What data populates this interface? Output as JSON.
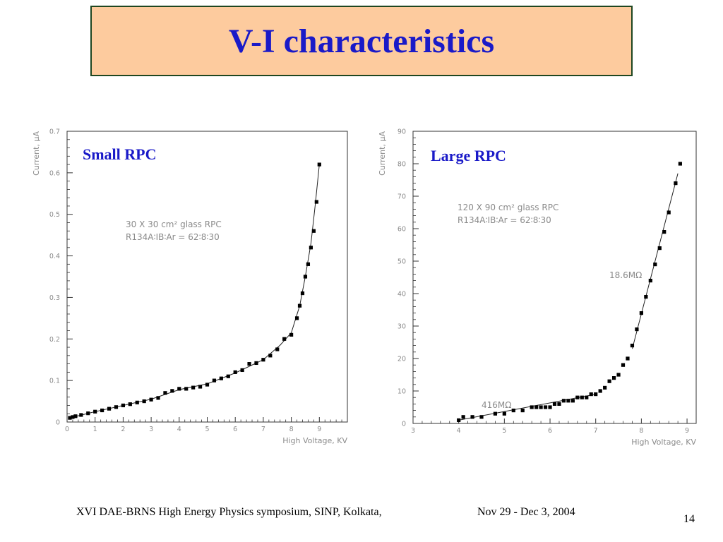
{
  "slide": {
    "title": "V-I characteristics",
    "footer": "XVI DAE-BRNS High Energy Physics symposium, SINP, Kolkata,",
    "footer_date": "Nov 29 - Dec 3, 2004",
    "slide_number": "14"
  },
  "colors": {
    "title_bg": "#fdcb9e",
    "title_border": "#1e4620",
    "title_text": "#1a1ac8",
    "marker": "#000000",
    "annotation": "#8a8a8a"
  },
  "chart_data": [
    {
      "id": "small",
      "type": "scatter",
      "label": "Small RPC",
      "xlabel": "High Voltage, KV",
      "ylabel": "Current, μA",
      "xlim": [
        0,
        10
      ],
      "ylim": [
        0,
        0.7
      ],
      "xticks": [
        0,
        1,
        2,
        3,
        4,
        5,
        6,
        7,
        8,
        9
      ],
      "yticks": [
        0,
        0.1,
        0.2,
        0.3,
        0.4,
        0.5,
        0.6,
        0.7
      ],
      "annotations": [
        "30 X 30 cm² glass RPC",
        "R134A∶IB∶Ar = 62∶8∶30"
      ],
      "grid": false,
      "x": [
        0.1,
        0.2,
        0.3,
        0.5,
        0.75,
        1.0,
        1.25,
        1.5,
        1.75,
        2.0,
        2.25,
        2.5,
        2.75,
        3.0,
        3.25,
        3.5,
        3.75,
        4.0,
        4.25,
        4.5,
        4.75,
        5.0,
        5.25,
        5.5,
        5.75,
        6.0,
        6.25,
        6.5,
        6.75,
        7.0,
        7.25,
        7.5,
        7.75,
        8.0,
        8.2,
        8.3,
        8.4,
        8.5,
        8.6,
        8.7,
        8.8,
        8.9,
        9.0
      ],
      "y": [
        0.01,
        0.012,
        0.014,
        0.017,
        0.021,
        0.025,
        0.028,
        0.032,
        0.036,
        0.04,
        0.043,
        0.047,
        0.05,
        0.054,
        0.058,
        0.07,
        0.075,
        0.08,
        0.08,
        0.083,
        0.085,
        0.09,
        0.1,
        0.105,
        0.11,
        0.12,
        0.125,
        0.14,
        0.142,
        0.15,
        0.16,
        0.175,
        0.2,
        0.21,
        0.25,
        0.28,
        0.31,
        0.35,
        0.38,
        0.42,
        0.46,
        0.53,
        0.62
      ],
      "fit": [
        [
          0.1,
          0.01
        ],
        [
          1,
          0.025
        ],
        [
          2,
          0.04
        ],
        [
          3,
          0.055
        ],
        [
          4,
          0.078
        ],
        [
          5,
          0.092
        ],
        [
          6,
          0.118
        ],
        [
          7,
          0.15
        ],
        [
          7.6,
          0.185
        ],
        [
          8.0,
          0.215
        ],
        [
          8.3,
          0.28
        ],
        [
          8.5,
          0.35
        ],
        [
          8.7,
          0.43
        ],
        [
          8.85,
          0.52
        ],
        [
          9.0,
          0.62
        ]
      ]
    },
    {
      "id": "large",
      "type": "scatter",
      "label": "Large RPC",
      "xlabel": "High Voltage, KV",
      "ylabel": "Current, μA",
      "xlim": [
        3,
        9.2
      ],
      "ylim": [
        0,
        90
      ],
      "xticks": [
        3,
        4,
        5,
        6,
        7,
        8,
        9
      ],
      "yticks": [
        0,
        10,
        20,
        30,
        40,
        50,
        60,
        70,
        80,
        90
      ],
      "annotations": [
        "120 X 90 cm² glass RPC",
        "R134A∶IB∶Ar = 62∶8∶30",
        "18.6MΩ",
        "416MΩ"
      ],
      "grid": false,
      "x": [
        4.0,
        4.1,
        4.3,
        4.5,
        4.8,
        5.0,
        5.2,
        5.4,
        5.6,
        5.7,
        5.8,
        5.9,
        6.0,
        6.1,
        6.2,
        6.3,
        6.4,
        6.5,
        6.6,
        6.7,
        6.8,
        6.9,
        7.0,
        7.1,
        7.2,
        7.3,
        7.4,
        7.5,
        7.6,
        7.7,
        7.8,
        7.9,
        8.0,
        8.1,
        8.2,
        8.3,
        8.4,
        8.5,
        8.6,
        8.75,
        8.85
      ],
      "y": [
        1,
        2,
        2,
        2,
        3,
        3,
        4,
        4,
        5,
        5,
        5,
        5,
        5,
        6,
        6,
        7,
        7,
        7,
        8,
        8,
        8,
        9,
        9,
        10,
        11,
        13,
        14,
        15,
        18,
        20,
        24,
        29,
        34,
        39,
        44,
        49,
        54,
        59,
        65,
        74,
        80
      ],
      "fits": [
        [
          [
            4.0,
            1.0
          ],
          [
            7.0,
            9.0
          ]
        ],
        [
          [
            7.8,
            23.0
          ],
          [
            8.8,
            77.0
          ]
        ]
      ]
    }
  ]
}
